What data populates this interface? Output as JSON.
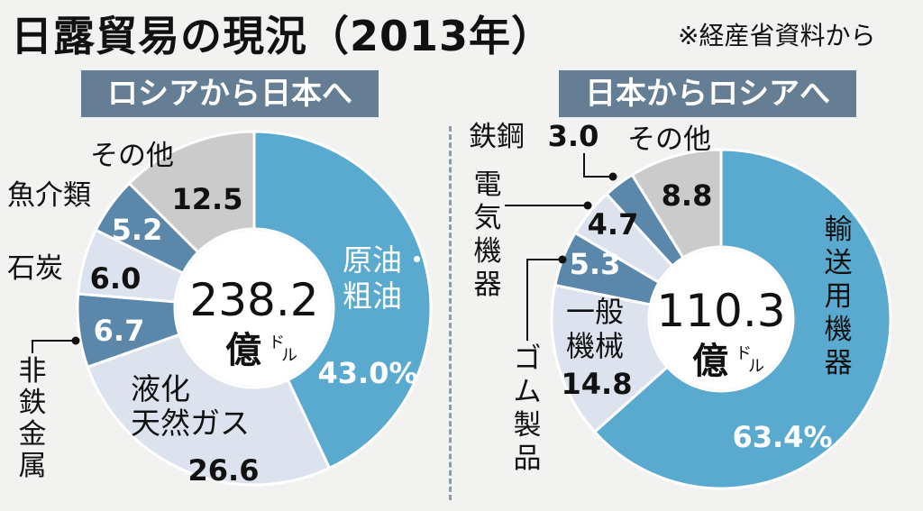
{
  "title": "日露貿易の現況（2013年）",
  "source": "※経産省資料から",
  "colors": {
    "dark_blue": "#5b87ab",
    "light_blue": "#5aaad0",
    "pale": "#dde3ee",
    "gray": "#cbcbcb",
    "panel": "#667e93"
  },
  "chart_data": [
    {
      "type": "pie",
      "title": "ロシアから日本へ",
      "total": "238.2",
      "unit": "億",
      "unit_sup": "ドル",
      "slices": [
        {
          "label": "原油・粗油",
          "value": 43.0,
          "value_label": "43.0%"
        },
        {
          "label": "液化天然ガス",
          "value": 26.6,
          "value_label": "26.6"
        },
        {
          "label": "非鉄金属",
          "value": 6.7,
          "value_label": "6.7"
        },
        {
          "label": "石炭",
          "value": 6.0,
          "value_label": "6.0"
        },
        {
          "label": "魚介類",
          "value": 5.2,
          "value_label": "5.2"
        },
        {
          "label": "その他",
          "value": 12.5,
          "value_label": "12.5"
        }
      ]
    },
    {
      "type": "pie",
      "title": "日本からロシアへ",
      "total": "110.3",
      "unit": "億",
      "unit_sup": "ドル",
      "slices": [
        {
          "label": "輸送用機器",
          "value": 63.4,
          "value_label": "63.4%"
        },
        {
          "label": "一般機械",
          "value": 14.8,
          "value_label": "14.8"
        },
        {
          "label": "ゴム製品",
          "value": 5.3,
          "value_label": "5.3"
        },
        {
          "label": "電気機器",
          "value": 4.7,
          "value_label": "4.7"
        },
        {
          "label": "鉄鋼",
          "value": 3.0,
          "value_label": "3.0"
        },
        {
          "label": "その他",
          "value": 8.8,
          "value_label": "8.8"
        }
      ]
    }
  ]
}
